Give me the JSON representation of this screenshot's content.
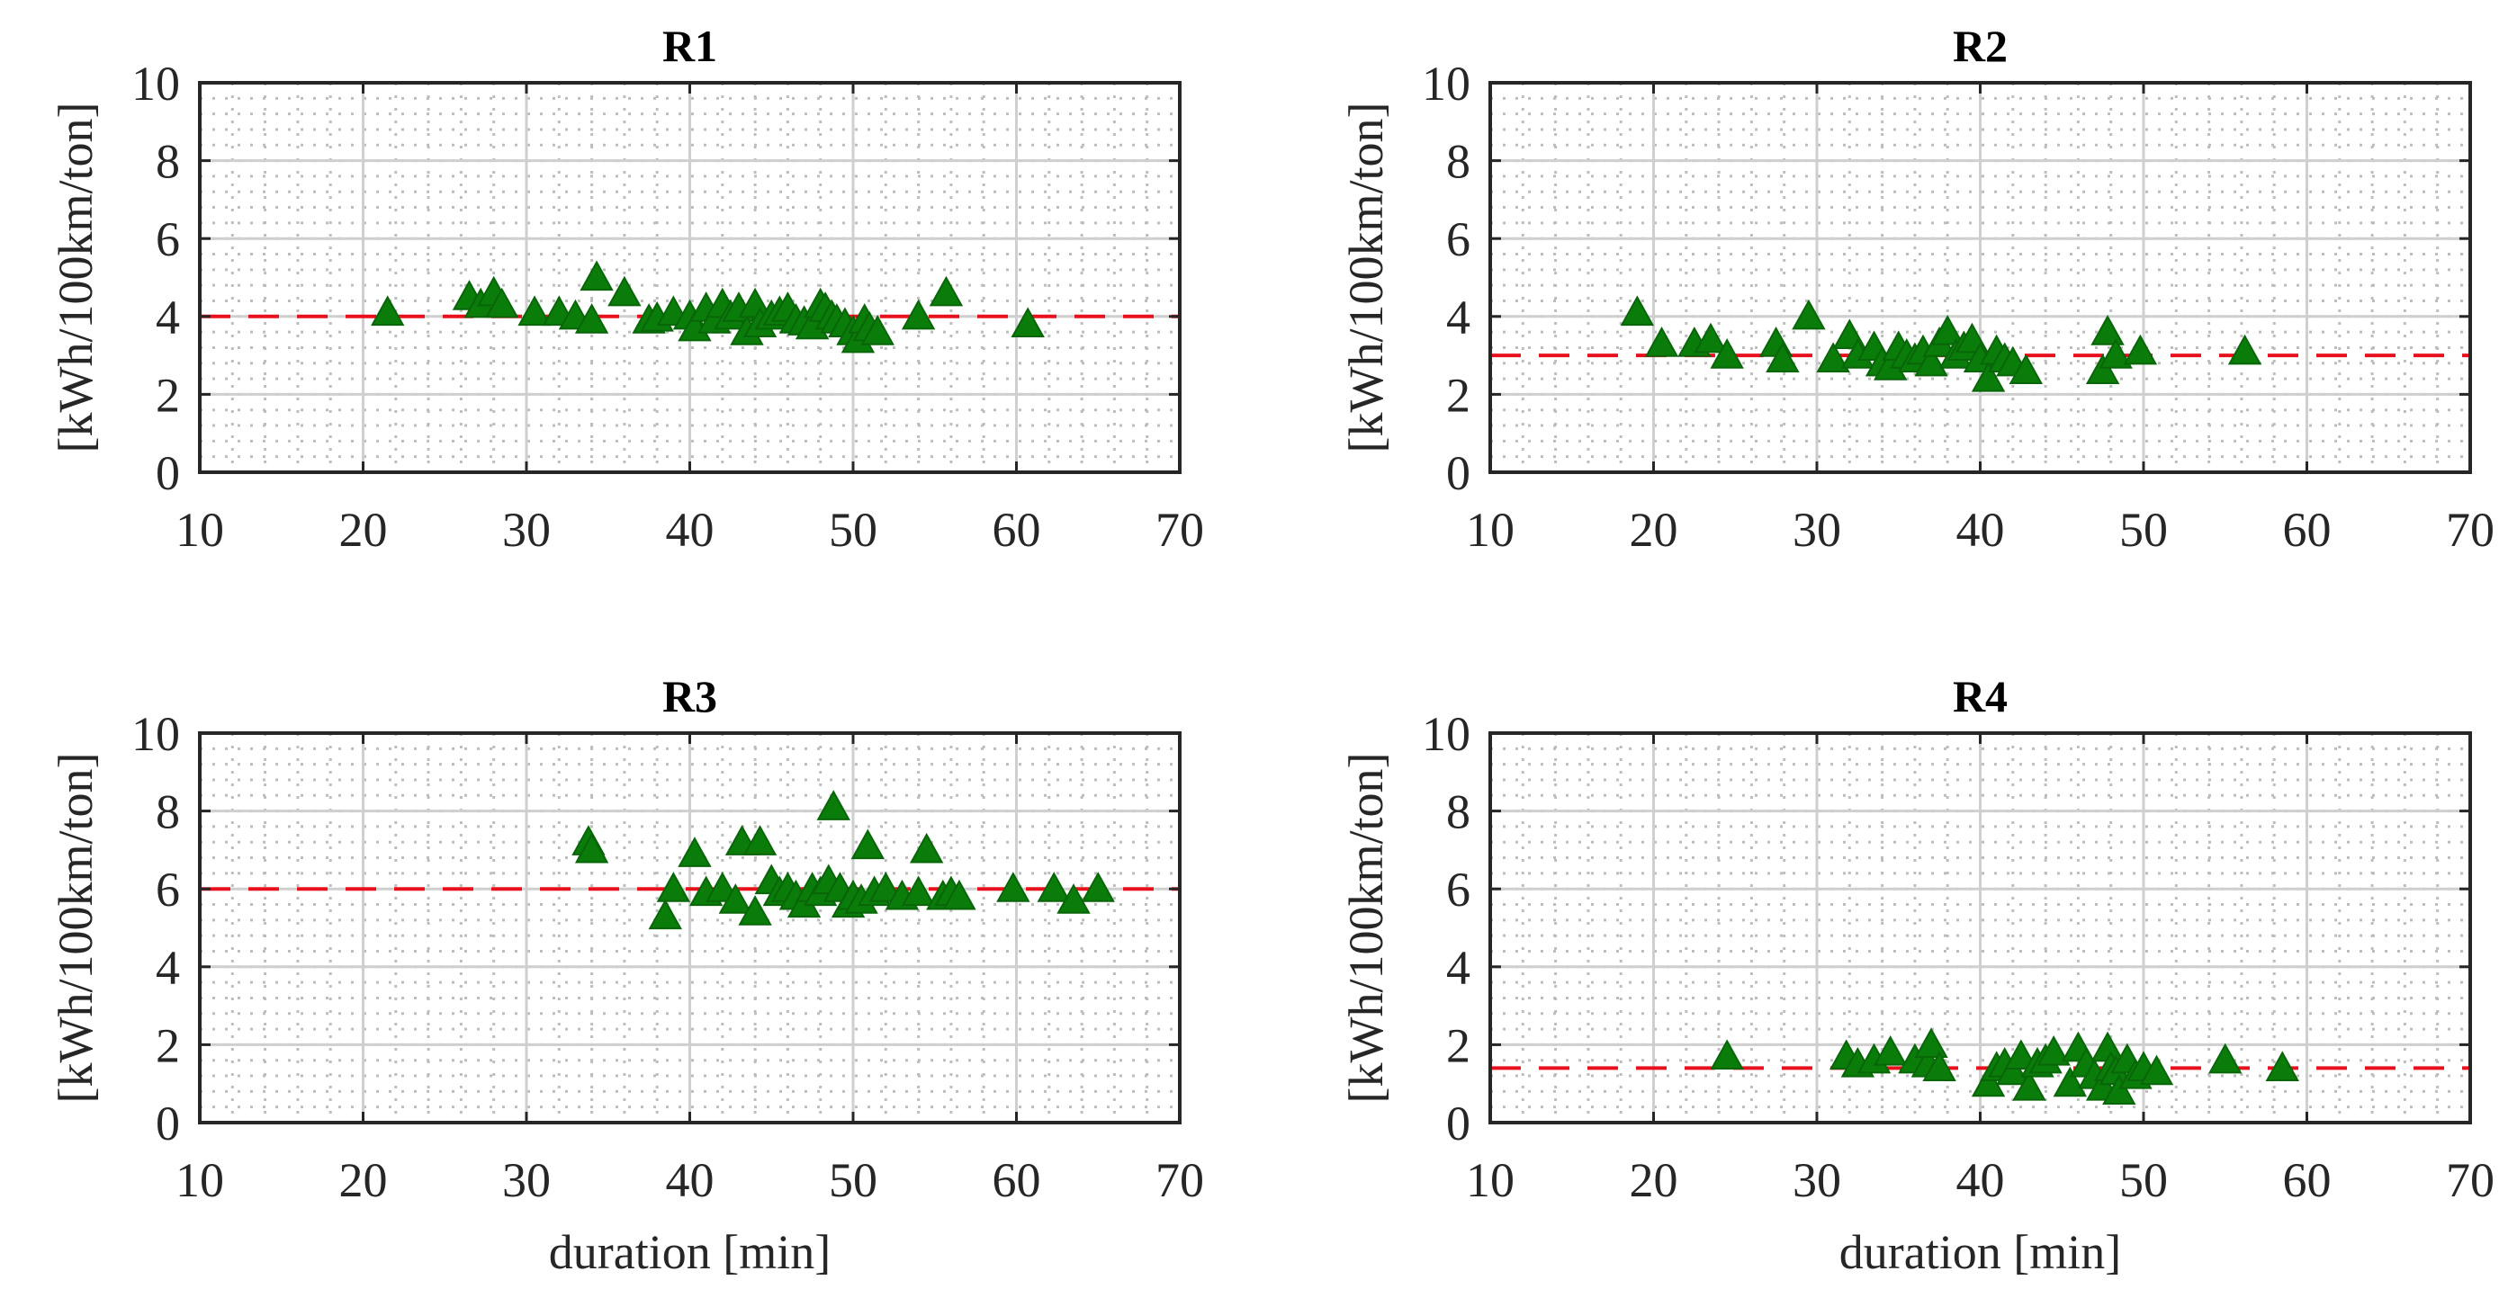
{
  "colors": {
    "marker": "#0a7c0a",
    "marker_edge": "#086508",
    "reference_line": "#e8101c",
    "grid_major": "#cfcfcf",
    "grid_minor": "#bdbdbd",
    "axes": "#262626"
  },
  "chart_data": [
    {
      "type": "scatter",
      "title": "R1",
      "xlabel": "",
      "ylabel": "[kWh/100km/ton]",
      "xlim": [
        10,
        70
      ],
      "ylim": [
        0,
        10
      ],
      "xticks": [
        "10",
        "20",
        "30",
        "40",
        "50",
        "60",
        "70"
      ],
      "yticks": [
        "0",
        "2",
        "4",
        "6",
        "8",
        "10"
      ],
      "reference_y": 4.0,
      "grid": true,
      "points": [
        [
          21.5,
          4.1
        ],
        [
          26.5,
          4.5
        ],
        [
          27.2,
          4.3
        ],
        [
          28.0,
          4.6
        ],
        [
          28.5,
          4.3
        ],
        [
          30.5,
          4.1
        ],
        [
          32.0,
          4.1
        ],
        [
          33.0,
          4.0
        ],
        [
          34.0,
          3.9
        ],
        [
          34.3,
          5.0
        ],
        [
          36.0,
          4.6
        ],
        [
          37.5,
          3.9
        ],
        [
          38.0,
          3.95
        ],
        [
          39.0,
          4.1
        ],
        [
          40.0,
          4.0
        ],
        [
          40.3,
          3.7
        ],
        [
          41.0,
          4.2
        ],
        [
          41.5,
          3.9
        ],
        [
          42.0,
          4.3
        ],
        [
          42.5,
          4.0
        ],
        [
          43.0,
          4.2
        ],
        [
          43.5,
          3.6
        ],
        [
          44.0,
          4.3
        ],
        [
          44.3,
          3.8
        ],
        [
          45.0,
          4.0
        ],
        [
          45.5,
          4.1
        ],
        [
          46.0,
          4.2
        ],
        [
          46.5,
          3.9
        ],
        [
          47.0,
          3.85
        ],
        [
          47.5,
          3.75
        ],
        [
          48.0,
          4.3
        ],
        [
          48.3,
          4.2
        ],
        [
          48.7,
          4.0
        ],
        [
          49.0,
          3.9
        ],
        [
          49.5,
          3.8
        ],
        [
          50.0,
          3.6
        ],
        [
          50.3,
          3.4
        ],
        [
          50.7,
          3.9
        ],
        [
          51.0,
          3.7
        ],
        [
          51.5,
          3.6
        ],
        [
          54.0,
          4.0
        ],
        [
          55.7,
          4.6
        ],
        [
          60.7,
          3.8
        ]
      ]
    },
    {
      "type": "scatter",
      "title": "R2",
      "xlabel": "",
      "ylabel": "[kWh/100km/ton]",
      "xlim": [
        10,
        70
      ],
      "ylim": [
        0,
        10
      ],
      "xticks": [
        "10",
        "20",
        "30",
        "40",
        "50",
        "60",
        "70"
      ],
      "yticks": [
        "0",
        "2",
        "4",
        "6",
        "8",
        "10"
      ],
      "reference_y": 3.0,
      "grid": true,
      "points": [
        [
          19.0,
          4.1
        ],
        [
          20.5,
          3.3
        ],
        [
          22.5,
          3.3
        ],
        [
          23.5,
          3.4
        ],
        [
          24.5,
          3.0
        ],
        [
          27.5,
          3.3
        ],
        [
          27.9,
          2.9
        ],
        [
          29.5,
          4.0
        ],
        [
          31.0,
          2.9
        ],
        [
          32.0,
          3.5
        ],
        [
          32.5,
          3.0
        ],
        [
          33.5,
          3.2
        ],
        [
          34.0,
          2.8
        ],
        [
          34.5,
          2.7
        ],
        [
          35.0,
          3.2
        ],
        [
          35.5,
          3.0
        ],
        [
          36.0,
          2.9
        ],
        [
          36.5,
          3.1
        ],
        [
          37.0,
          2.8
        ],
        [
          37.5,
          3.3
        ],
        [
          38.0,
          3.6
        ],
        [
          38.5,
          3.0
        ],
        [
          39.0,
          3.2
        ],
        [
          39.5,
          3.4
        ],
        [
          40.0,
          2.9
        ],
        [
          40.5,
          2.4
        ],
        [
          41.0,
          3.1
        ],
        [
          41.5,
          2.9
        ],
        [
          42.0,
          2.8
        ],
        [
          42.8,
          2.6
        ],
        [
          47.5,
          2.6
        ],
        [
          47.8,
          3.6
        ],
        [
          48.3,
          3.0
        ],
        [
          49.8,
          3.1
        ],
        [
          56.2,
          3.1
        ]
      ]
    },
    {
      "type": "scatter",
      "title": "R3",
      "xlabel": "duration [min]",
      "ylabel": "[kWh/100km/ton]",
      "xlim": [
        10,
        70
      ],
      "ylim": [
        0,
        10
      ],
      "xticks": [
        "10",
        "20",
        "30",
        "40",
        "50",
        "60",
        "70"
      ],
      "yticks": [
        "0",
        "2",
        "4",
        "6",
        "8",
        "10"
      ],
      "reference_y": 6.0,
      "grid": true,
      "points": [
        [
          33.8,
          7.2
        ],
        [
          34.0,
          7.0
        ],
        [
          38.5,
          5.3
        ],
        [
          39.0,
          6.0
        ],
        [
          40.3,
          6.9
        ],
        [
          41.0,
          5.9
        ],
        [
          42.0,
          6.0
        ],
        [
          42.8,
          5.7
        ],
        [
          43.2,
          7.2
        ],
        [
          44.0,
          5.4
        ],
        [
          44.3,
          7.2
        ],
        [
          45.0,
          6.2
        ],
        [
          45.5,
          5.9
        ],
        [
          46.0,
          6.0
        ],
        [
          46.5,
          5.8
        ],
        [
          47.0,
          5.6
        ],
        [
          47.5,
          6.0
        ],
        [
          48.0,
          5.9
        ],
        [
          48.5,
          6.2
        ],
        [
          48.8,
          8.1
        ],
        [
          49.2,
          6.0
        ],
        [
          49.7,
          5.6
        ],
        [
          50.0,
          5.8
        ],
        [
          50.5,
          5.7
        ],
        [
          50.9,
          7.1
        ],
        [
          51.3,
          5.9
        ],
        [
          52.0,
          6.0
        ],
        [
          53.0,
          5.8
        ],
        [
          54.0,
          5.9
        ],
        [
          54.5,
          7.0
        ],
        [
          55.5,
          5.8
        ],
        [
          56.0,
          5.9
        ],
        [
          56.5,
          5.8
        ],
        [
          59.8,
          6.0
        ],
        [
          62.3,
          6.0
        ],
        [
          63.5,
          5.7
        ],
        [
          65.0,
          6.0
        ]
      ]
    },
    {
      "type": "scatter",
      "title": "R4",
      "xlabel": "duration [min]",
      "ylabel": "[kWh/100km/ton]",
      "xlim": [
        10,
        70
      ],
      "ylim": [
        0,
        10
      ],
      "xticks": [
        "10",
        "20",
        "30",
        "40",
        "50",
        "60",
        "70"
      ],
      "yticks": [
        "0",
        "2",
        "4",
        "6",
        "8",
        "10"
      ],
      "reference_y": 1.4,
      "grid": true,
      "points": [
        [
          24.5,
          1.7
        ],
        [
          31.8,
          1.7
        ],
        [
          32.5,
          1.5
        ],
        [
          33.5,
          1.6
        ],
        [
          34.5,
          1.8
        ],
        [
          36.0,
          1.6
        ],
        [
          36.8,
          1.5
        ],
        [
          37.0,
          2.0
        ],
        [
          37.5,
          1.4
        ],
        [
          40.5,
          1.0
        ],
        [
          41.0,
          1.4
        ],
        [
          41.5,
          1.5
        ],
        [
          42.0,
          1.3
        ],
        [
          42.5,
          1.7
        ],
        [
          43.0,
          0.9
        ],
        [
          43.5,
          1.5
        ],
        [
          44.0,
          1.6
        ],
        [
          44.5,
          1.8
        ],
        [
          45.5,
          1.0
        ],
        [
          46.0,
          1.9
        ],
        [
          46.5,
          1.5
        ],
        [
          47.0,
          1.2
        ],
        [
          47.5,
          0.9
        ],
        [
          47.8,
          1.9
        ],
        [
          48.0,
          1.4
        ],
        [
          48.3,
          1.3
        ],
        [
          48.5,
          0.8
        ],
        [
          49.0,
          1.6
        ],
        [
          49.5,
          1.2
        ],
        [
          50.0,
          1.4
        ],
        [
          50.8,
          1.3
        ],
        [
          55.0,
          1.6
        ],
        [
          58.5,
          1.4
        ]
      ]
    }
  ]
}
